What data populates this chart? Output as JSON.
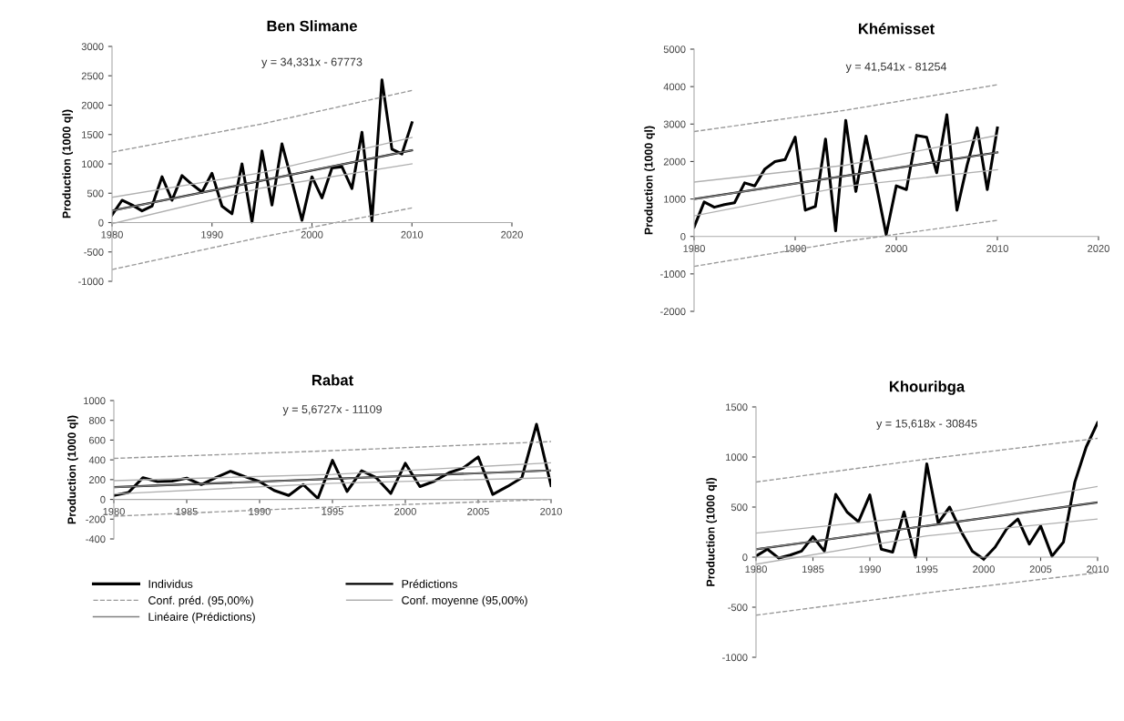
{
  "chart_data": [
    {
      "type": "line",
      "title": "Ben Slimane",
      "ylabel": "Production (1000 ql)",
      "annotations": [
        "y = 34,331x - 67773"
      ],
      "x": [
        1980,
        1981,
        1982,
        1983,
        1984,
        1985,
        1986,
        1987,
        1988,
        1989,
        1990,
        1991,
        1992,
        1993,
        1994,
        1995,
        1996,
        1997,
        1998,
        1999,
        2000,
        2001,
        2002,
        2003,
        2004,
        2005,
        2006,
        2007,
        2008,
        2009,
        2010
      ],
      "xlim": [
        1980,
        2020
      ],
      "xticks": [
        1980,
        1990,
        2000,
        2010,
        2020
      ],
      "ylim": [
        -1000,
        3000
      ],
      "yticks": [
        -1000,
        -500,
        0,
        500,
        1000,
        1500,
        2000,
        2500,
        3000
      ],
      "grid": false,
      "legend": false,
      "series": [
        {
          "color": "#000000",
          "values": [
            130,
            380,
            300,
            200,
            280,
            780,
            380,
            800,
            650,
            520,
            840,
            280,
            150,
            1000,
            10,
            1220,
            300,
            1340,
            700,
            40,
            780,
            420,
            930,
            950,
            580,
            1540,
            30,
            2430,
            1250,
            1170,
            1700
          ]
        },
        {
          "color": "#000000",
          "x": [
            1980,
            2010
          ],
          "values": [
            202,
            1232
          ]
        },
        {
          "color": "#999999",
          "line_style": "dashed",
          "x": [
            1980,
            1995,
            2010
          ],
          "values": [
            1200,
            1680,
            2250
          ]
        },
        {
          "color": "#999999",
          "line_style": "dashed",
          "x": [
            1980,
            1995,
            2010
          ],
          "values": [
            -800,
            -245,
            250
          ]
        },
        {
          "color": "#b0b0b0",
          "x": [
            1980,
            1995,
            2010
          ],
          "values": [
            430,
            850,
            1450
          ]
        },
        {
          "color": "#b0b0b0",
          "x": [
            1980,
            1995,
            2010
          ],
          "values": [
            -20,
            590,
            1000
          ]
        },
        {
          "color": "#808080",
          "x": [
            1980,
            2010
          ],
          "values": [
            202,
            1232
          ]
        }
      ]
    },
    {
      "type": "line",
      "title": "Khémisset",
      "ylabel": "Production (1000 ql)",
      "annotations": [
        "y = 41,541x - 81254"
      ],
      "x": [
        1980,
        1981,
        1982,
        1983,
        1984,
        1985,
        1986,
        1987,
        1988,
        1989,
        1990,
        1991,
        1992,
        1993,
        1994,
        1995,
        1996,
        1997,
        1998,
        1999,
        2000,
        2001,
        2002,
        2003,
        2004,
        2005,
        2006,
        2007,
        2008,
        2009,
        2010
      ],
      "xlim": [
        1980,
        2020
      ],
      "xticks": [
        1980,
        1990,
        2000,
        2010,
        2020
      ],
      "ylim": [
        -2000,
        5000
      ],
      "yticks": [
        -2000,
        -1000,
        0,
        1000,
        2000,
        3000,
        4000,
        5000
      ],
      "grid": false,
      "legend": false,
      "series": [
        {
          "color": "#000000",
          "values": [
            250,
            920,
            780,
            850,
            900,
            1430,
            1350,
            1800,
            2000,
            2050,
            2650,
            700,
            800,
            2600,
            150,
            3100,
            1200,
            2680,
            1400,
            50,
            1350,
            1250,
            2700,
            2650,
            1700,
            3250,
            700,
            1900,
            2900,
            1250,
            2900
          ]
        },
        {
          "color": "#000000",
          "x": [
            1980,
            2010
          ],
          "values": [
            997,
            2243
          ]
        },
        {
          "color": "#999999",
          "line_style": "dashed",
          "x": [
            1980,
            1995,
            2010
          ],
          "values": [
            2800,
            3370,
            4050
          ]
        },
        {
          "color": "#999999",
          "line_style": "dashed",
          "x": [
            1980,
            1995,
            2010
          ],
          "values": [
            -800,
            -130,
            430
          ]
        },
        {
          "color": "#b0b0b0",
          "x": [
            1980,
            1995,
            2010
          ],
          "values": [
            1450,
            1900,
            2700
          ]
        },
        {
          "color": "#b0b0b0",
          "x": [
            1980,
            1995,
            2010
          ],
          "values": [
            550,
            1340,
            1780
          ]
        },
        {
          "color": "#808080",
          "x": [
            1980,
            2010
          ],
          "values": [
            997,
            2243
          ]
        }
      ]
    },
    {
      "type": "line",
      "title": "Rabat",
      "ylabel": "Production (1000 ql)",
      "annotations": [
        "y = 5,6727x - 11109"
      ],
      "x": [
        1980,
        1981,
        1982,
        1983,
        1984,
        1985,
        1986,
        1987,
        1988,
        1989,
        1990,
        1991,
        1992,
        1993,
        1994,
        1995,
        1996,
        1997,
        1998,
        1999,
        2000,
        2001,
        2002,
        2003,
        2004,
        2005,
        2006,
        2007,
        2008,
        2009,
        2010
      ],
      "xlim": [
        1980,
        2010
      ],
      "xticks": [
        1980,
        1985,
        1990,
        1995,
        2000,
        2005,
        2010
      ],
      "ylim": [
        -400,
        1000
      ],
      "yticks": [
        -400,
        -200,
        0,
        200,
        400,
        600,
        800,
        1000
      ],
      "grid": false,
      "legend": "bottom",
      "series": [
        {
          "name": "Individus",
          "color": "#000000",
          "values": [
            40,
            70,
            220,
            180,
            185,
            215,
            150,
            220,
            285,
            230,
            180,
            90,
            40,
            150,
            10,
            395,
            80,
            290,
            220,
            60,
            365,
            130,
            185,
            270,
            320,
            430,
            50,
            130,
            220,
            760,
            140
          ]
        },
        {
          "name": "Prédictions",
          "color": "#000000",
          "x": [
            1980,
            2010
          ],
          "values": [
            123,
            293
          ]
        },
        {
          "name": "Conf. préd. (95,00%)",
          "color": "#999999",
          "line_style": "dashed",
          "x": [
            1980,
            1995,
            2010
          ],
          "values": [
            415,
            493,
            585
          ]
        },
        {
          "name": "Conf. moyenne (95,00%)",
          "color": "#b0b0b0",
          "x": [
            1980,
            1995,
            2010
          ],
          "values": [
            190,
            253,
            370
          ]
        },
        {
          "name": "Linéaire (Prédictions)",
          "color": "#808080",
          "x": [
            1980,
            2010
          ],
          "values": [
            123,
            293
          ]
        },
        {
          "color": "#999999",
          "line_style": "dashed",
          "x": [
            1980,
            1995,
            2010
          ],
          "values": [
            -170,
            -77,
            0
          ]
        },
        {
          "color": "#b0b0b0",
          "x": [
            1980,
            1995,
            2010
          ],
          "values": [
            55,
            163,
            220
          ]
        }
      ]
    },
    {
      "type": "line",
      "title": "Khouribga",
      "ylabel": "Production (1000 ql)",
      "annotations": [
        "y = 15,618x - 30845"
      ],
      "x": [
        1980,
        1981,
        1982,
        1983,
        1984,
        1985,
        1986,
        1987,
        1988,
        1989,
        1990,
        1991,
        1992,
        1993,
        1994,
        1995,
        1996,
        1997,
        1998,
        1999,
        2000,
        2001,
        2002,
        2003,
        2004,
        2005,
        2006,
        2007,
        2008,
        2009,
        2010
      ],
      "xlim": [
        1980,
        2010
      ],
      "xticks": [
        1980,
        1985,
        1990,
        1995,
        2000,
        2005,
        2010
      ],
      "ylim": [
        -1000,
        1500
      ],
      "yticks": [
        -1000,
        -500,
        0,
        500,
        1000,
        1500
      ],
      "grid": false,
      "legend": false,
      "series": [
        {
          "color": "#000000",
          "values": [
            10,
            80,
            -10,
            20,
            60,
            205,
            60,
            627,
            450,
            353,
            621,
            80,
            50,
            452,
            0,
            932,
            340,
            500,
            260,
            60,
            -20,
            100,
            280,
            380,
            130,
            310,
            10,
            150,
            749,
            1100,
            1342
          ]
        },
        {
          "color": "#000000",
          "x": [
            1980,
            2010
          ],
          "values": [
            79,
            547
          ]
        },
        {
          "color": "#999999",
          "line_style": "dashed",
          "x": [
            1980,
            1995,
            2010
          ],
          "values": [
            750,
            980,
            1186
          ]
        },
        {
          "color": "#999999",
          "line_style": "dashed",
          "x": [
            1980,
            1995,
            2010
          ],
          "values": [
            -580,
            -357,
            -155
          ]
        },
        {
          "color": "#b0b0b0",
          "x": [
            1980,
            1995,
            2010
          ],
          "values": [
            240,
            413,
            706
          ]
        },
        {
          "color": "#b0b0b0",
          "x": [
            1980,
            1995,
            2010
          ],
          "values": [
            -70,
            213,
            381
          ]
        },
        {
          "color": "#808080",
          "x": [
            1980,
            2010
          ],
          "values": [
            79,
            547
          ]
        }
      ]
    }
  ]
}
